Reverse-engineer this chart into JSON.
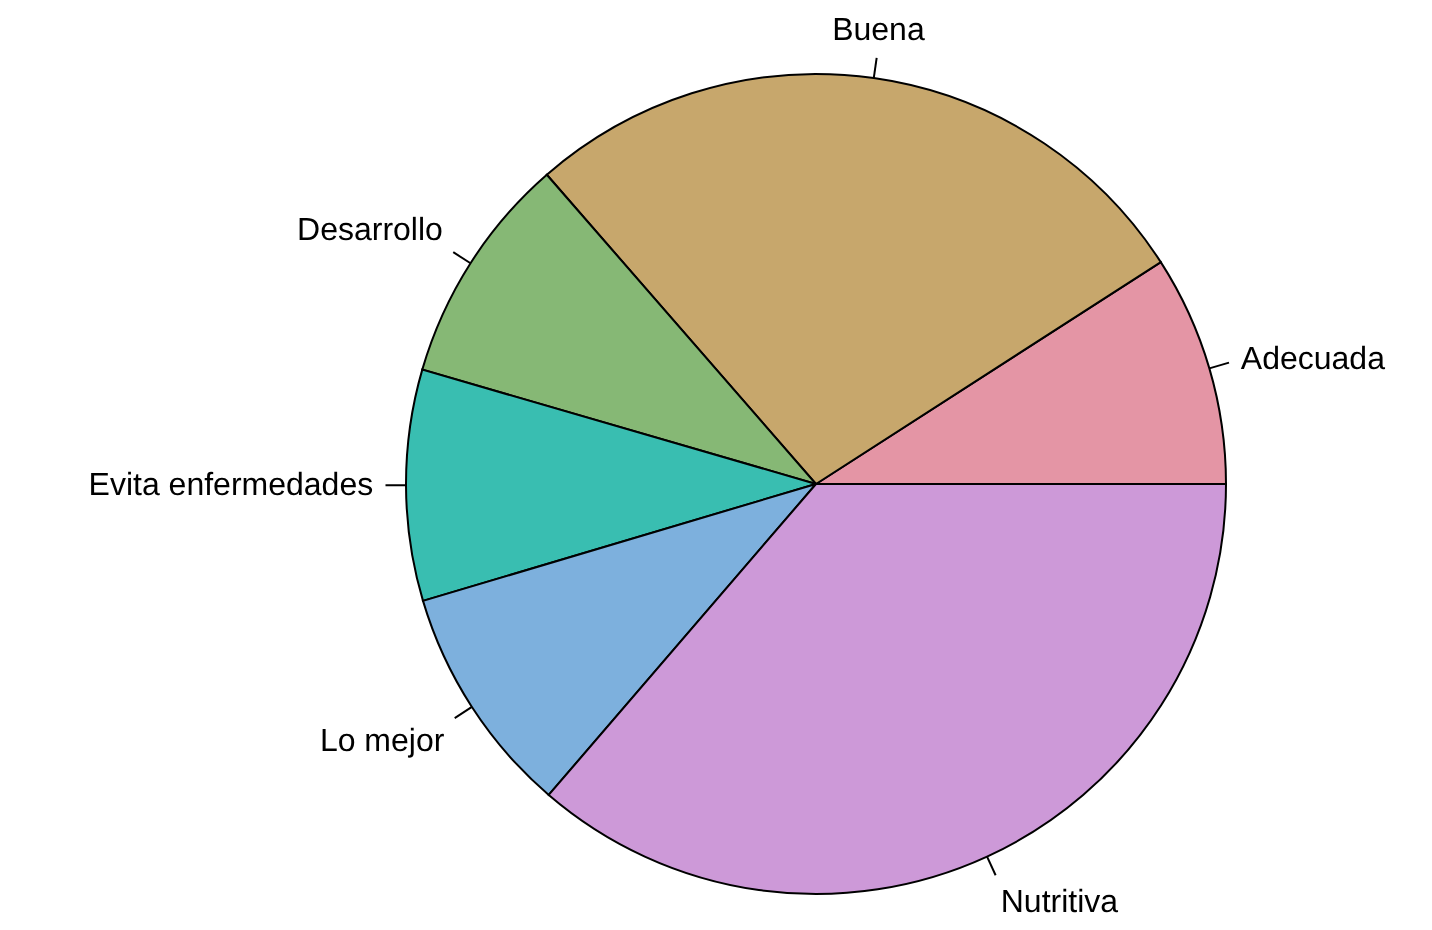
{
  "chart_data": {
    "type": "pie",
    "categories": [
      "Adecuada",
      "Buena",
      "Desarrollo",
      "Evita enfermedades",
      "Lo mejor",
      "Nutritiva"
    ],
    "values": [
      9.1,
      27.3,
      9.1,
      9.1,
      9.1,
      36.3
    ],
    "colors": [
      "#e495a5",
      "#c7a76c",
      "#86b875",
      "#39beb1",
      "#7db0dd",
      "#cd99d8"
    ]
  }
}
